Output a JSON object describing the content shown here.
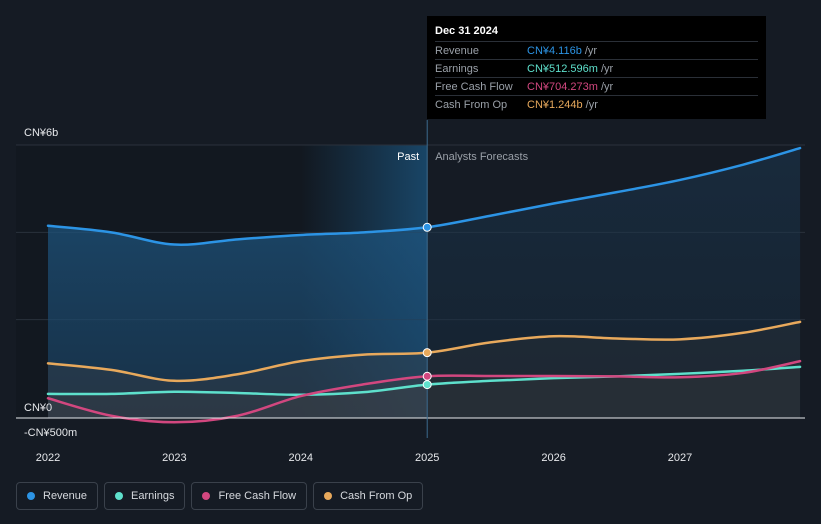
{
  "tooltip": {
    "date": "Dec 31 2024",
    "rows": [
      {
        "label": "Revenue",
        "value": "CN¥4.116b",
        "unit": "/yr",
        "color": "#2c94e5"
      },
      {
        "label": "Earnings",
        "value": "CN¥512.596m",
        "unit": "/yr",
        "color": "#5ee0cc"
      },
      {
        "label": "Free Cash Flow",
        "value": "CN¥704.273m",
        "unit": "/yr",
        "color": "#d2477f"
      },
      {
        "label": "Cash From Op",
        "value": "CN¥1.244b",
        "unit": "/yr",
        "color": "#e8a95c"
      }
    ]
  },
  "legend": [
    {
      "label": "Revenue",
      "color": "#2c94e5"
    },
    {
      "label": "Earnings",
      "color": "#5ee0cc"
    },
    {
      "label": "Free Cash Flow",
      "color": "#d2477f"
    },
    {
      "label": "Cash From Op",
      "color": "#e8a95c"
    }
  ],
  "chart_data": {
    "type": "line",
    "title": "",
    "xlabel": "",
    "ylabel": "",
    "y_unit": "CN¥ billions",
    "xlim": [
      2021.75,
      2027.95
    ],
    "ylim": [
      -0.5,
      6.0
    ],
    "x_ticks": [
      {
        "x": 2022,
        "label": "2022"
      },
      {
        "x": 2023,
        "label": "2023"
      },
      {
        "x": 2024,
        "label": "2024"
      },
      {
        "x": 2025,
        "label": "2025"
      },
      {
        "x": 2026,
        "label": "2026"
      },
      {
        "x": 2027,
        "label": "2027"
      }
    ],
    "y_ticks": [
      {
        "y": 6.0,
        "label": "CN¥6b"
      },
      {
        "y": 0.0,
        "label": "CN¥0"
      },
      {
        "y": -0.5,
        "label": "-CN¥500m"
      }
    ],
    "divider_x": 2025.0,
    "highlight_from_x": 2024.0,
    "past_label": "Past",
    "forecast_label": "Analysts Forecasts",
    "series": [
      {
        "name": "Revenue",
        "color": "#2c94e5",
        "x": [
          2022.0,
          2022.5,
          2023.0,
          2023.5,
          2024.0,
          2024.5,
          2025.0,
          2025.5,
          2026.0,
          2026.5,
          2027.0,
          2027.5,
          2027.95
        ],
        "y": [
          4.15,
          4.0,
          3.72,
          3.84,
          3.94,
          4.0,
          4.116,
          4.38,
          4.66,
          4.92,
          5.2,
          5.55,
          5.93
        ]
      },
      {
        "name": "Cash From Op",
        "color": "#e8a95c",
        "x": [
          2022.0,
          2022.5,
          2023.0,
          2023.5,
          2024.0,
          2024.5,
          2025.0,
          2025.5,
          2026.0,
          2026.5,
          2027.0,
          2027.5,
          2027.95
        ],
        "y": [
          1.0,
          0.85,
          0.6,
          0.75,
          1.05,
          1.2,
          1.244,
          1.48,
          1.62,
          1.57,
          1.55,
          1.7,
          1.95
        ]
      },
      {
        "name": "Earnings",
        "color": "#5ee0cc",
        "x": [
          2022.0,
          2022.5,
          2023.0,
          2023.5,
          2024.0,
          2024.5,
          2025.0,
          2025.5,
          2026.0,
          2026.5,
          2027.0,
          2027.5,
          2027.95
        ],
        "y": [
          0.3,
          0.3,
          0.35,
          0.32,
          0.28,
          0.34,
          0.512596,
          0.6,
          0.66,
          0.7,
          0.76,
          0.83,
          0.92
        ]
      },
      {
        "name": "Free Cash Flow",
        "color": "#d2477f",
        "x": [
          2022.0,
          2022.5,
          2023.0,
          2023.5,
          2024.0,
          2024.5,
          2025.0,
          2025.5,
          2026.0,
          2026.5,
          2027.0,
          2027.5,
          2027.95
        ],
        "y": [
          0.2,
          -0.2,
          -0.35,
          -0.2,
          0.25,
          0.52,
          0.704273,
          0.71,
          0.71,
          0.7,
          0.68,
          0.78,
          1.05
        ]
      }
    ]
  }
}
